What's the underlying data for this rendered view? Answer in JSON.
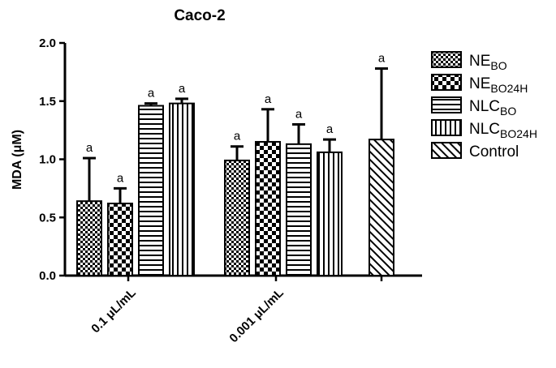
{
  "chart_data": {
    "type": "bar",
    "title": "Caco-2",
    "ylabel": "MDA (μM)",
    "xlabel": "",
    "ylim": [
      0,
      2.0
    ],
    "yticks": [
      "0.0",
      "0.5",
      "1.0",
      "1.5",
      "2.0"
    ],
    "groups": [
      {
        "label": "0.1  μL/mL",
        "bars": [
          {
            "series": "NE_BO",
            "value": 0.64,
            "error": 0.37,
            "letter": "a"
          },
          {
            "series": "NE_BO24H",
            "value": 0.62,
            "error": 0.13,
            "letter": "a"
          },
          {
            "series": "NLC_BO",
            "value": 1.46,
            "error": 0.02,
            "letter": "a"
          },
          {
            "series": "NLC_BO24H",
            "value": 1.48,
            "error": 0.04,
            "letter": "a"
          }
        ]
      },
      {
        "label": "0.001  μL/mL",
        "bars": [
          {
            "series": "NE_BO",
            "value": 0.99,
            "error": 0.12,
            "letter": "a"
          },
          {
            "series": "NE_BO24H",
            "value": 1.15,
            "error": 0.28,
            "letter": "a"
          },
          {
            "series": "NLC_BO",
            "value": 1.13,
            "error": 0.17,
            "letter": "a"
          },
          {
            "series": "NLC_BO24H",
            "value": 1.06,
            "error": 0.11,
            "letter": "a"
          }
        ]
      },
      {
        "label": "",
        "bars": [
          {
            "series": "Control",
            "value": 1.17,
            "error": 0.61,
            "letter": "a"
          }
        ]
      }
    ],
    "legend": {
      "position": "right",
      "items": [
        {
          "key": "NE_BO",
          "main": "NE",
          "sub": "BO",
          "pattern": "checker-fine"
        },
        {
          "key": "NE_BO24H",
          "main": "NE",
          "sub": "BO24H",
          "pattern": "checker-coarse"
        },
        {
          "key": "NLC_BO",
          "main": "NLC",
          "sub": "BO",
          "pattern": "horizontal"
        },
        {
          "key": "NLC_BO24H",
          "main": "NLC",
          "sub": "BO24H",
          "pattern": "vertical"
        },
        {
          "key": "Control",
          "main": "Control",
          "sub": "",
          "pattern": "diagonal"
        }
      ]
    },
    "grid": false
  }
}
